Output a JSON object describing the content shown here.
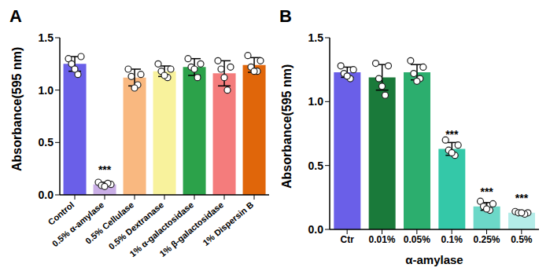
{
  "chart_data": [
    {
      "type": "bar",
      "title": "A",
      "ylabel": "Absorbance(595 nm)",
      "categories": [
        "Control",
        "0.5% α-amylase",
        "0.5% Cellulase",
        "0.5% Dextranase",
        "1% α-galactosidase",
        "1% β-galactosidase",
        "1% Dispersin B"
      ],
      "values": [
        1.25,
        0.1,
        1.12,
        1.18,
        1.22,
        1.16,
        1.24
      ],
      "errors": [
        0.07,
        0.02,
        0.08,
        0.05,
        0.08,
        0.12,
        0.07
      ],
      "points": [
        [
          1.3,
          1.32,
          1.25,
          1.15,
          1.2
        ],
        [
          0.12,
          0.1,
          0.09,
          0.11,
          0.08
        ],
        [
          1.2,
          1.15,
          1.13,
          1.05,
          1.02
        ],
        [
          1.25,
          1.2,
          1.18,
          1.12,
          1.14
        ],
        [
          1.3,
          1.25,
          1.22,
          1.12,
          1.2
        ],
        [
          1.28,
          1.22,
          1.2,
          1.0,
          1.12
        ],
        [
          1.33,
          1.28,
          1.22,
          1.18,
          1.18
        ]
      ],
      "significance": [
        null,
        "***",
        null,
        null,
        null,
        null,
        null
      ],
      "colors": [
        "#6a5fe8",
        "#c9aee6",
        "#f9b880",
        "#f8f29c",
        "#2ca24a",
        "#f47c7c",
        "#e0660a"
      ],
      "ylim": [
        0,
        1.5
      ],
      "yticks": [
        {
          "value": 0,
          "label": "0.0"
        },
        0.5,
        {
          "value": 1,
          "label": "1.0"
        },
        1.5
      ]
    },
    {
      "type": "bar",
      "title": "B",
      "ylabel": "Absorbance(595 nm)",
      "xlabel": "α-amylase",
      "categories": [
        "Ctr",
        "0.01%",
        "0.05%",
        "0.1%",
        "0.25%",
        "0.5%"
      ],
      "values": [
        1.23,
        1.19,
        1.23,
        0.63,
        0.18,
        0.13
      ],
      "errors": [
        0.04,
        0.1,
        0.06,
        0.05,
        0.03,
        0.01
      ],
      "points": [
        [
          1.28,
          1.25,
          1.22,
          1.18,
          1.2
        ],
        [
          1.3,
          1.28,
          1.18,
          1.05,
          1.12
        ],
        [
          1.32,
          1.27,
          1.22,
          1.18,
          1.16
        ],
        [
          0.7,
          0.66,
          0.62,
          0.58,
          0.6
        ],
        [
          0.22,
          0.2,
          0.18,
          0.15,
          0.16
        ],
        [
          0.14,
          0.13,
          0.13,
          0.12,
          0.13
        ]
      ],
      "significance": [
        null,
        null,
        null,
        "***",
        "***",
        "***"
      ],
      "colors": [
        "#6a5fe8",
        "#1a7a3a",
        "#2cae6e",
        "#34c8a8",
        "#6cd8c8",
        "#b4ece8"
      ],
      "ylim": [
        0,
        1.5
      ],
      "yticks": [
        {
          "value": 0,
          "label": "0.0"
        },
        0.5,
        {
          "value": 1,
          "label": "1.0"
        },
        1.5
      ]
    }
  ]
}
